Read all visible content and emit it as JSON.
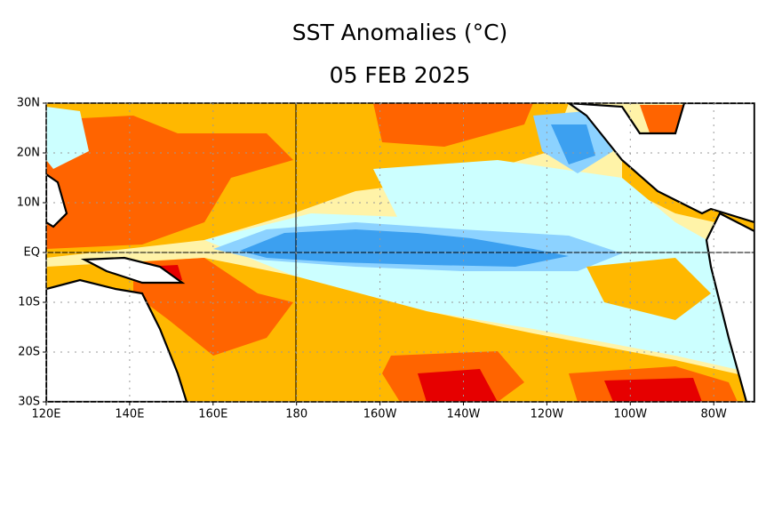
{
  "title": "SST Anomalies (°C)",
  "subtitle": "05 FEB 2025",
  "map": {
    "lat_labels": [
      "30N",
      "20N",
      "10N",
      "EQ",
      "10S",
      "20S",
      "30S"
    ],
    "lon_labels": [
      "120E",
      "140E",
      "160E",
      "180",
      "160W",
      "140W",
      "120W",
      "100W",
      "80W"
    ]
  }
}
